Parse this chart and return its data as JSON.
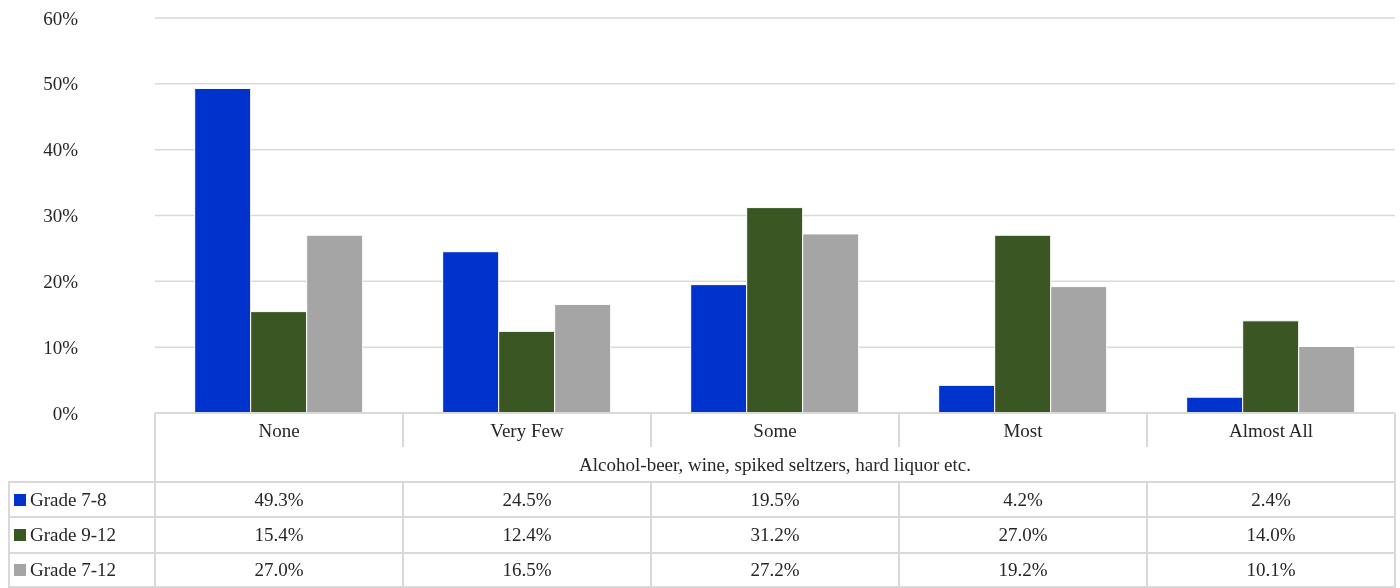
{
  "chart_data": {
    "type": "bar",
    "xlabel": "Alcohol-beer, wine, spiked seltzers, hard liquor etc.",
    "categories": [
      "None",
      "Very Few",
      "Some",
      "Most",
      "Almost All"
    ],
    "series": [
      {
        "name": "Grade 7-8",
        "color": "#0033cc",
        "values": [
          49.3,
          24.5,
          19.5,
          4.2,
          2.4
        ],
        "value_labels": [
          "49.3%",
          "24.5%",
          "19.5%",
          "4.2%",
          "2.4%"
        ]
      },
      {
        "name": "Grade 9-12",
        "color": "#3a5623",
        "values": [
          15.4,
          12.4,
          31.2,
          27.0,
          14.0
        ],
        "value_labels": [
          "15.4%",
          "12.4%",
          "31.2%",
          "27.0%",
          "14.0%"
        ]
      },
      {
        "name": "Grade 7-12",
        "color": "#a5a5a5",
        "values": [
          27.0,
          16.5,
          27.2,
          19.2,
          10.1
        ],
        "value_labels": [
          "27.0%",
          "16.5%",
          "27.2%",
          "19.2%",
          "10.1%"
        ]
      }
    ],
    "ylim": [
      0,
      60
    ],
    "yticks": [
      {
        "value": 0,
        "label": "0%"
      },
      {
        "value": 10,
        "label": "10%"
      },
      {
        "value": 20,
        "label": "20%"
      },
      {
        "value": 30,
        "label": "30%"
      },
      {
        "value": 40,
        "label": "40%"
      },
      {
        "value": 50,
        "label": "50%"
      },
      {
        "value": 60,
        "label": "60%"
      }
    ],
    "grid": "y",
    "legend": "bottom"
  }
}
